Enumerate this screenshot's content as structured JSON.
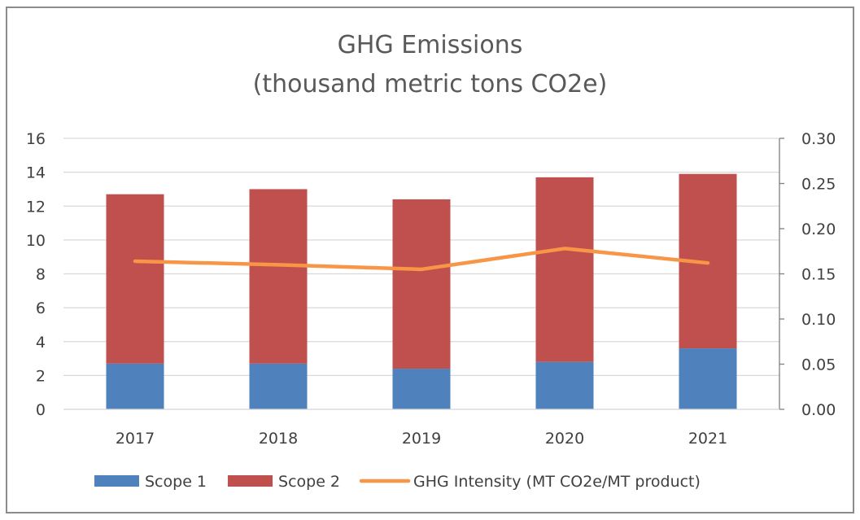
{
  "chart_data": {
    "type": "bar",
    "title": "GHG Emissions",
    "subtitle": "(thousand metric tons CO2e)",
    "categories": [
      "2017",
      "2018",
      "2019",
      "2020",
      "2021"
    ],
    "series": [
      {
        "name": "Scope 1",
        "type": "bar",
        "axis": "left",
        "color": "#4f81bd",
        "values": [
          2.7,
          2.7,
          2.4,
          2.8,
          3.6
        ]
      },
      {
        "name": "Scope 2",
        "type": "bar",
        "axis": "left",
        "color": "#c0504d",
        "values": [
          10.0,
          10.3,
          10.0,
          10.9,
          10.3
        ]
      },
      {
        "name": "GHG Intensity (MT CO2e/MT product)",
        "type": "line",
        "axis": "right",
        "color": "#f79646",
        "values": [
          0.164,
          0.16,
          0.155,
          0.178,
          0.162
        ]
      }
    ],
    "stacked": true,
    "ylim": [
      0,
      16
    ],
    "y_ticks": [
      "0",
      "2",
      "4",
      "6",
      "8",
      "10",
      "12",
      "14",
      "16"
    ],
    "y2lim": [
      0,
      0.3
    ],
    "y2_ticks": [
      "0.00",
      "0.05",
      "0.10",
      "0.15",
      "0.20",
      "0.25",
      "0.30"
    ],
    "grid": true,
    "legend_position": "bottom"
  }
}
